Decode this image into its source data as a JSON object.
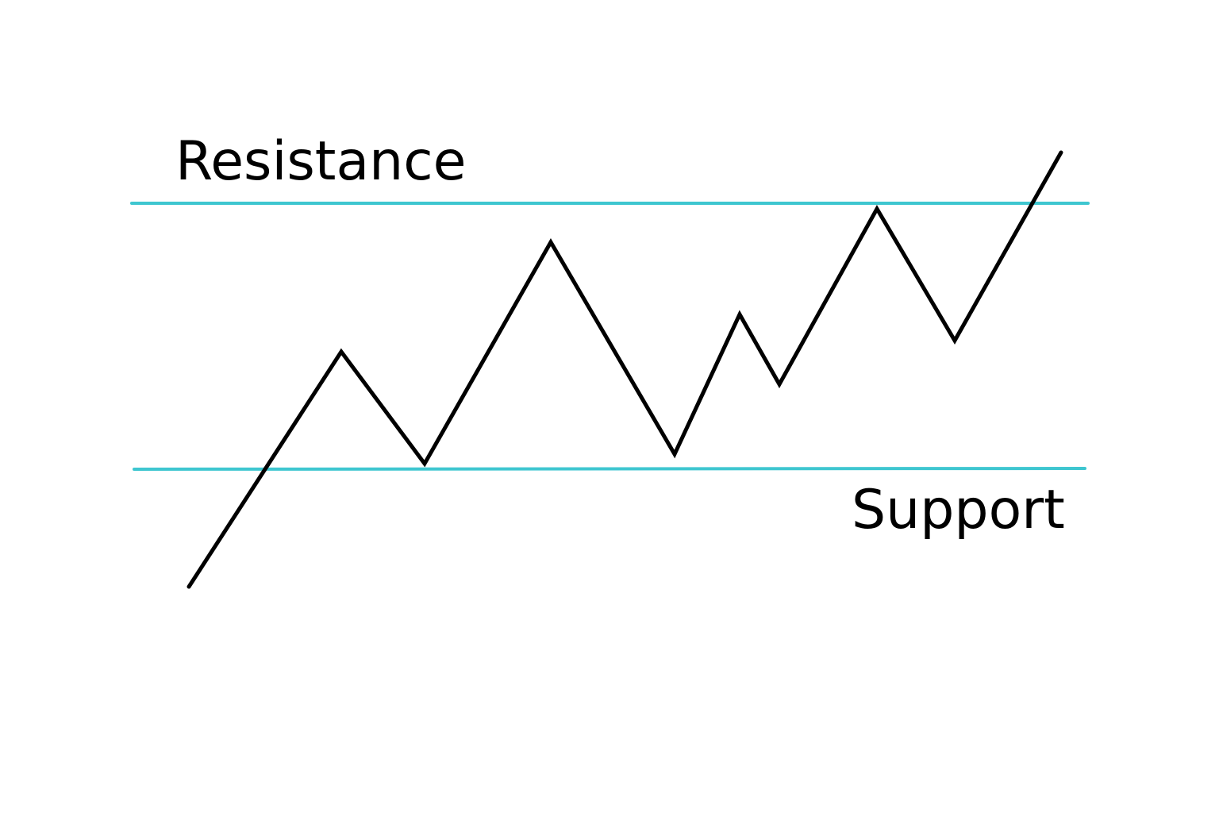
{
  "labels": {
    "resistance": "Resistance",
    "support": "Support"
  },
  "colors": {
    "background": "#ffffff",
    "level_line": "#3ec6d0",
    "price_line": "#000000",
    "text": "#000000"
  },
  "diagram": {
    "type": "support-resistance",
    "price_trend": "zigzag rising from below support, bouncing between support and resistance, then breaking above resistance"
  }
}
